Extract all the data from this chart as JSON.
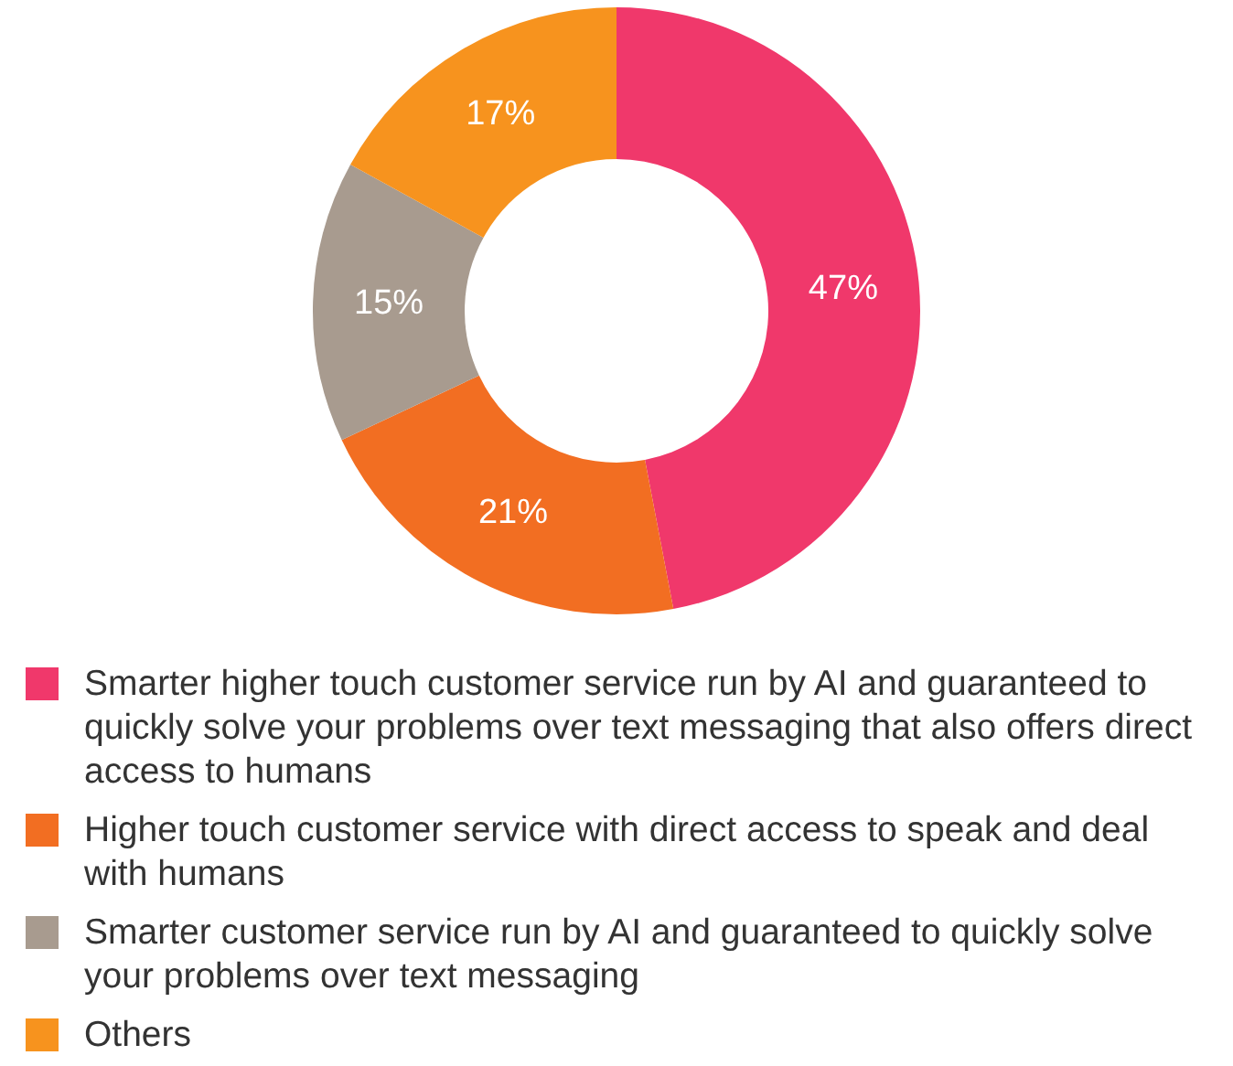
{
  "chart_data": {
    "type": "donut",
    "categories": [
      "Smarter higher touch customer service run by AI and guaranteed to quickly solve your problems over text messaging that also offers direct access to humans",
      "Higher touch customer service with direct access to speak and deal with humans",
      "Smarter customer service run by AI and guaranteed to quickly solve your problems over text messaging",
      "Others"
    ],
    "values": [
      47,
      21,
      15,
      17
    ],
    "value_labels": [
      "47%",
      "21%",
      "15%",
      "17%"
    ],
    "colors": [
      "#f0386b",
      "#f26e22",
      "#a89b8f",
      "#f7931e"
    ],
    "legend": "bottom"
  }
}
